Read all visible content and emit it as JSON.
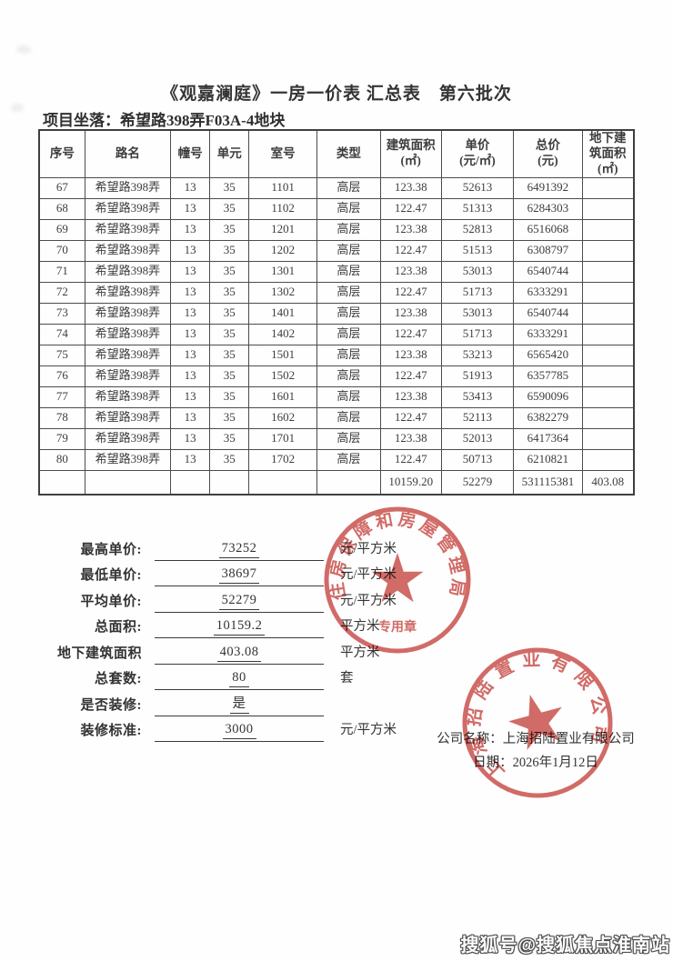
{
  "title": "《观嘉澜庭》一房一价表 汇总表　第六批次",
  "project": {
    "label": "项目坐落：",
    "value": "希望路398弄F03A-4地块"
  },
  "table": {
    "headers": [
      "序号",
      "路名",
      "幢号",
      "单元",
      "室号",
      "类型",
      "建筑面积\n(㎡)",
      "单价\n(元/㎡)",
      "总价\n(元)",
      "地下建\n筑面积\n(㎡)"
    ],
    "col_widths_pct": [
      7.7,
      14.4,
      6.6,
      6.6,
      11.4,
      10.7,
      10.2,
      12.2,
      11.5,
      8.7
    ],
    "rows": [
      [
        "67",
        "希望路398弄",
        "13",
        "35",
        "1101",
        "高层",
        "123.38",
        "52613",
        "6491392",
        ""
      ],
      [
        "68",
        "希望路398弄",
        "13",
        "35",
        "1102",
        "高层",
        "122.47",
        "51313",
        "6284303",
        ""
      ],
      [
        "69",
        "希望路398弄",
        "13",
        "35",
        "1201",
        "高层",
        "123.38",
        "52813",
        "6516068",
        ""
      ],
      [
        "70",
        "希望路398弄",
        "13",
        "35",
        "1202",
        "高层",
        "122.47",
        "51513",
        "6308797",
        ""
      ],
      [
        "71",
        "希望路398弄",
        "13",
        "35",
        "1301",
        "高层",
        "123.38",
        "53013",
        "6540744",
        ""
      ],
      [
        "72",
        "希望路398弄",
        "13",
        "35",
        "1302",
        "高层",
        "122.47",
        "51713",
        "6333291",
        ""
      ],
      [
        "73",
        "希望路398弄",
        "13",
        "35",
        "1401",
        "高层",
        "123.38",
        "53013",
        "6540744",
        ""
      ],
      [
        "74",
        "希望路398弄",
        "13",
        "35",
        "1402",
        "高层",
        "122.47",
        "51713",
        "6333291",
        ""
      ],
      [
        "75",
        "希望路398弄",
        "13",
        "35",
        "1501",
        "高层",
        "123.38",
        "53213",
        "6565420",
        ""
      ],
      [
        "76",
        "希望路398弄",
        "13",
        "35",
        "1502",
        "高层",
        "122.47",
        "51913",
        "6357785",
        ""
      ],
      [
        "77",
        "希望路398弄",
        "13",
        "35",
        "1601",
        "高层",
        "123.38",
        "53413",
        "6590096",
        ""
      ],
      [
        "78",
        "希望路398弄",
        "13",
        "35",
        "1602",
        "高层",
        "122.47",
        "52113",
        "6382279",
        ""
      ],
      [
        "79",
        "希望路398弄",
        "13",
        "35",
        "1701",
        "高层",
        "123.38",
        "52013",
        "6417364",
        ""
      ],
      [
        "80",
        "希望路398弄",
        "13",
        "35",
        "1702",
        "高层",
        "122.47",
        "50713",
        "6210821",
        ""
      ]
    ],
    "total_row": [
      "",
      "",
      "",
      "",
      "",
      "",
      "10159.20",
      "52279",
      "531115381",
      "403.08"
    ]
  },
  "summary": {
    "rows": [
      {
        "label": "最高单价:",
        "value": "73252",
        "unit": "元/平方米"
      },
      {
        "label": "最低单价:",
        "value": "38697",
        "unit": "元/平方米"
      },
      {
        "label": "平均单价:",
        "value": "52279",
        "unit": "元/平方米"
      },
      {
        "label": "总面积:",
        "value": "10159.2",
        "unit": "平方米"
      },
      {
        "label": "地下建筑面积",
        "value": "403.08",
        "unit": "平方米"
      },
      {
        "label": "总套数:",
        "value": "80",
        "unit": "套"
      },
      {
        "label": "是否装修:",
        "value": "是",
        "unit": ""
      },
      {
        "label": "装修标准:",
        "value": "3000",
        "unit": "元/平方米"
      }
    ]
  },
  "footer": {
    "company_line": "公司名称：上海招陆置业有限公司",
    "date_line": "日期：2026年1月12日"
  },
  "stamps": {
    "gov": {
      "arc_text": "住房保障和房屋管理局",
      "inner_text": "专用章",
      "color": "#c5413c"
    },
    "company": {
      "arc_text": "上海招陆置业有限公司",
      "color": "#c5413c"
    }
  },
  "watermark": "搜狐号@搜狐焦点淮南站"
}
